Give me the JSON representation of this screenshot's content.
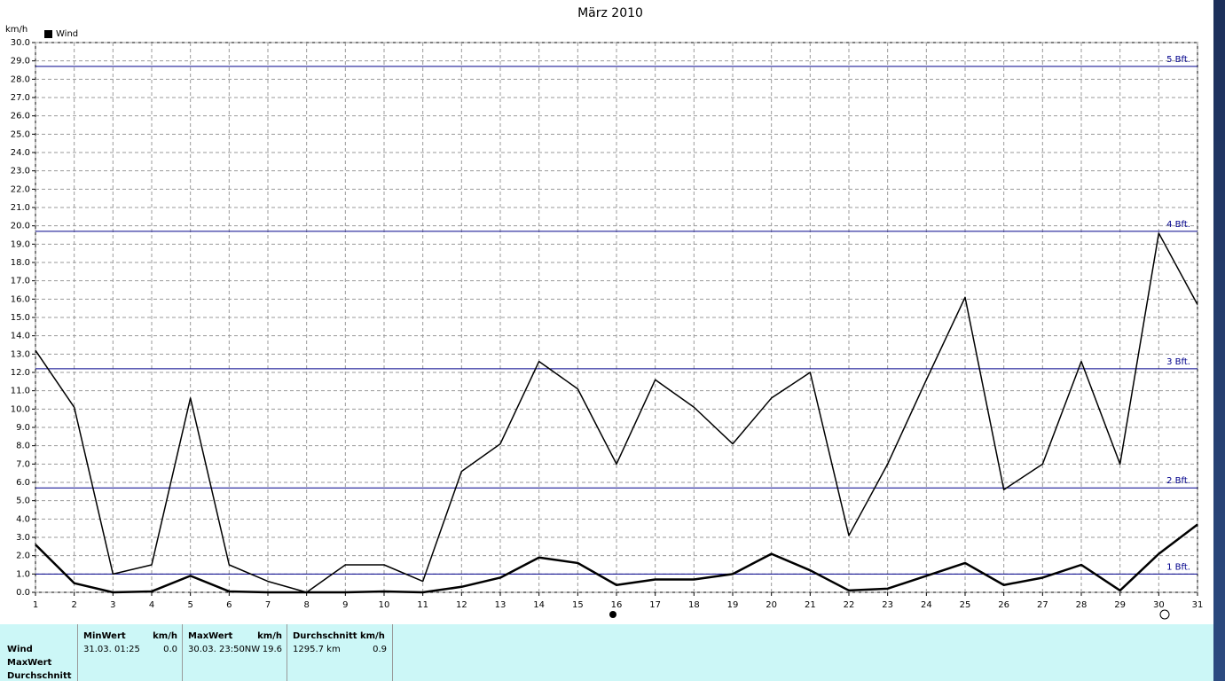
{
  "chart_data": {
    "type": "line",
    "title": "März 2010",
    "y_unit": "km/h",
    "x": [
      1,
      2,
      3,
      4,
      5,
      6,
      7,
      8,
      9,
      10,
      11,
      12,
      13,
      14,
      15,
      16,
      17,
      18,
      19,
      20,
      21,
      22,
      23,
      24,
      25,
      26,
      27,
      28,
      29,
      30,
      31
    ],
    "xlim": [
      1,
      31
    ],
    "xticks": [
      1,
      2,
      3,
      4,
      5,
      6,
      7,
      8,
      9,
      10,
      11,
      12,
      13,
      14,
      15,
      16,
      17,
      18,
      19,
      20,
      21,
      22,
      23,
      24,
      25,
      26,
      27,
      28,
      29,
      30,
      31
    ],
    "ylim": [
      0,
      30
    ],
    "yticks": [
      {
        "value": 0,
        "label": "0.0"
      },
      {
        "value": 1,
        "label": "1.0"
      },
      {
        "value": 2,
        "label": "2.0"
      },
      {
        "value": 3,
        "label": "3.0"
      },
      {
        "value": 4,
        "label": "4.0"
      },
      {
        "value": 5,
        "label": "5.0"
      },
      {
        "value": 6,
        "label": "6.0"
      },
      {
        "value": 7,
        "label": "7.0"
      },
      {
        "value": 8,
        "label": "8.0"
      },
      {
        "value": 9,
        "label": "9.0"
      },
      {
        "value": 10,
        "label": "10.0"
      },
      {
        "value": 11,
        "label": "11.0"
      },
      {
        "value": 12,
        "label": "12.0"
      },
      {
        "value": 13,
        "label": "13.0"
      },
      {
        "value": 14,
        "label": "14.0"
      },
      {
        "value": 15,
        "label": "15.0"
      },
      {
        "value": 16,
        "label": "16.0"
      },
      {
        "value": 17,
        "label": "17.0"
      },
      {
        "value": 18,
        "label": "18.0"
      },
      {
        "value": 19,
        "label": "19.0"
      },
      {
        "value": 20,
        "label": "20.0"
      },
      {
        "value": 21,
        "label": "21.0"
      },
      {
        "value": 22,
        "label": "22.0"
      },
      {
        "value": 23,
        "label": "23.0"
      },
      {
        "value": 24,
        "label": "24.0"
      },
      {
        "value": 25,
        "label": "25.0"
      },
      {
        "value": 26,
        "label": "26.0"
      },
      {
        "value": 27,
        "label": "27.0"
      },
      {
        "value": 28,
        "label": "28.0"
      },
      {
        "value": 29,
        "label": "29.0"
      },
      {
        "value": 30,
        "label": "30.0"
      }
    ],
    "grid": true,
    "series": [
      {
        "name": "Wind",
        "color": "#000000",
        "width": 2.5,
        "values": [
          2.6,
          0.5,
          0.0,
          0.05,
          0.9,
          0.05,
          0.0,
          0.0,
          0.0,
          0.05,
          0.0,
          0.3,
          0.8,
          1.9,
          1.6,
          0.4,
          0.7,
          0.7,
          1.0,
          2.1,
          1.2,
          0.1,
          0.2,
          0.9,
          1.6,
          0.4,
          0.8,
          1.5,
          0.1,
          2.1,
          3.7
        ]
      },
      {
        "color": "#000000",
        "width": 1.5,
        "values": [
          13.2,
          10.1,
          1.0,
          1.5,
          10.6,
          1.5,
          0.6,
          0.0,
          1.5,
          1.5,
          0.6,
          6.6,
          8.1,
          12.6,
          11.1,
          7.0,
          11.6,
          10.1,
          8.1,
          10.6,
          12.0,
          3.1,
          7.0,
          11.6,
          16.1,
          5.6,
          7.0,
          12.6,
          7.0,
          19.6,
          15.7
        ]
      }
    ],
    "reference_color": "#00008b",
    "reference_lines": [
      {
        "value": 28.7,
        "label": "5 Bft."
      },
      {
        "value": 19.7,
        "label": "4 Bft."
      },
      {
        "value": 12.2,
        "label": "3 Bft."
      },
      {
        "value": 5.7,
        "label": "2 Bft."
      },
      {
        "value": 1.0,
        "label": "1 Bft."
      }
    ]
  },
  "summary_table": {
    "row_labels": [
      "Wind",
      "MaxWert",
      "Durchschnitt"
    ],
    "columns": [
      {
        "header": "MinWert",
        "unit": "km/h",
        "time": "31.03.  01:25",
        "value": "0.0"
      },
      {
        "header": "MaxWert",
        "unit": "km/h",
        "time": "30.03.  23:50NW",
        "value": "19.6"
      },
      {
        "header": "Durchschnitt km/h",
        "time": "1295.7 km",
        "value": "0.9"
      }
    ]
  }
}
